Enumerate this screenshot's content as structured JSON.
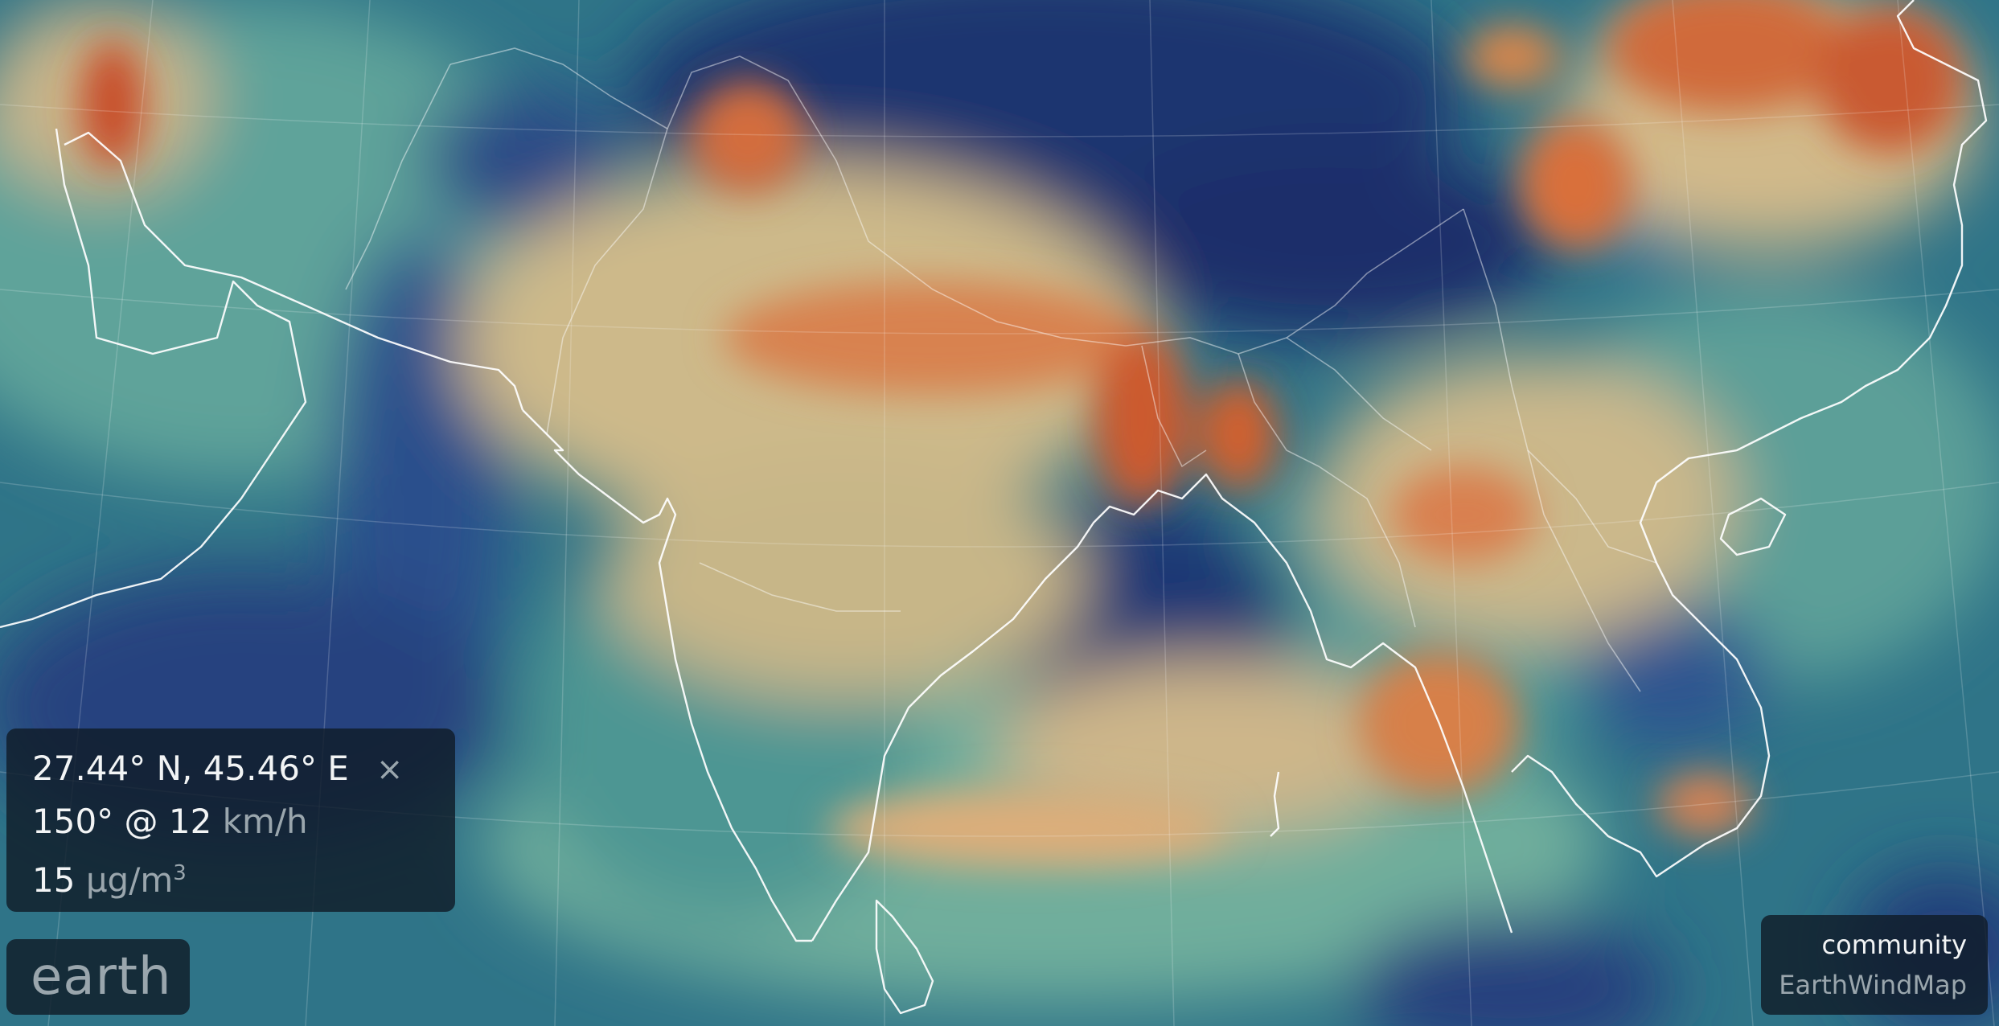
{
  "location": {
    "coords": "27.44° N, 45.46° E",
    "close_glyph": "×",
    "wind_value": "150° @ 12",
    "wind_unit": "km/h",
    "pollutant_value": "15",
    "pollutant_unit_base": "μg/m",
    "pollutant_unit_exp": "3"
  },
  "menu": {
    "label": "earth"
  },
  "brand": {
    "community": "community",
    "name": "EarthWindMap"
  },
  "colors": {
    "panel_bg": "#101c28",
    "coastline": "#ffffff",
    "scale_low": "#1c2f6a",
    "scale_mid": "#e6d7a2",
    "scale_high": "#c8502a"
  }
}
